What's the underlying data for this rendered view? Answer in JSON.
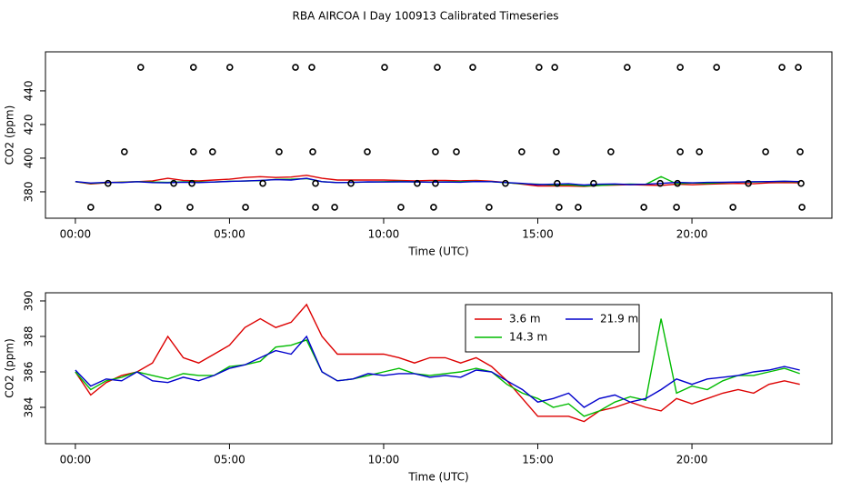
{
  "title": "RBA AIRCOA I  Day 100913  Calibrated Timeseries",
  "chart_data": [
    {
      "type": "line",
      "xlabel": "Time (UTC)",
      "ylabel": "CO2 (ppm)",
      "xlim": [
        -0.97,
        24.54
      ],
      "ylim": [
        364.3,
        463.2
      ],
      "xticks": [
        {
          "value": 0,
          "label": "00:00"
        },
        {
          "value": 5,
          "label": "05:00"
        },
        {
          "value": 10,
          "label": "10:00"
        },
        {
          "value": 15,
          "label": "15:00"
        },
        {
          "value": 20,
          "label": "20:00"
        }
      ],
      "yticks": [
        380,
        400,
        420,
        440
      ],
      "x": [
        0,
        0.5,
        1,
        1.5,
        2,
        2.5,
        3,
        3.5,
        4,
        4.5,
        5,
        5.5,
        6,
        6.5,
        7,
        7.5,
        8,
        8.5,
        9,
        9.5,
        10,
        10.5,
        11,
        11.5,
        12,
        12.5,
        13,
        13.5,
        14,
        14.5,
        15,
        15.5,
        16,
        16.5,
        17,
        17.5,
        18,
        18.5,
        19,
        19.5,
        20,
        20.5,
        21,
        21.5,
        22,
        22.5,
        23,
        23.5
      ],
      "series": [
        {
          "color": "#dd0000",
          "values": [
            386.0,
            384.7,
            385.4,
            385.8,
            386.0,
            386.5,
            388.0,
            386.8,
            386.5,
            387.0,
            387.5,
            388.5,
            389.0,
            388.5,
            388.8,
            389.8,
            388.0,
            387.0,
            387.0,
            387.0,
            387.0,
            386.8,
            386.5,
            386.8,
            386.8,
            386.5,
            386.8,
            386.3,
            385.5,
            384.5,
            383.5,
            383.5,
            383.5,
            383.2,
            383.8,
            384.0,
            384.3,
            384.0,
            383.8,
            384.5,
            384.2,
            384.5,
            384.8,
            385.0,
            384.8,
            385.3,
            385.5,
            385.3
          ]
        },
        {
          "color": "#00bb00",
          "values": [
            386.0,
            385.0,
            385.5,
            385.7,
            386.0,
            385.8,
            385.6,
            385.9,
            385.8,
            385.8,
            386.3,
            386.4,
            386.6,
            387.4,
            387.5,
            387.8,
            386.0,
            385.5,
            385.6,
            385.8,
            386.0,
            386.2,
            385.9,
            385.8,
            385.9,
            386.0,
            386.2,
            386.0,
            385.3,
            384.8,
            384.5,
            384.0,
            384.2,
            383.5,
            383.8,
            384.3,
            384.6,
            384.4,
            389.0,
            384.8,
            385.2,
            385.0,
            385.5,
            385.8,
            385.8,
            386.0,
            386.2,
            385.9
          ]
        },
        {
          "color": "#0000cc",
          "values": [
            386.1,
            385.2,
            385.6,
            385.5,
            386.0,
            385.5,
            385.4,
            385.7,
            385.5,
            385.8,
            386.2,
            386.4,
            386.8,
            387.2,
            387.0,
            388.0,
            386.0,
            385.5,
            385.6,
            385.9,
            385.8,
            385.9,
            385.9,
            385.7,
            385.8,
            385.7,
            386.1,
            386.0,
            385.5,
            385.0,
            384.3,
            384.5,
            384.8,
            384.0,
            384.5,
            384.7,
            384.3,
            384.5,
            385.0,
            385.6,
            385.3,
            385.6,
            385.7,
            385.8,
            386.0,
            386.1,
            386.3,
            386.1
          ]
        },
        {
          "type": "scatter",
          "color": "#000000",
          "x": [
            2.12,
            3.83,
            5.01,
            7.14,
            7.67,
            10.03,
            11.74,
            12.89,
            15.04,
            15.55,
            17.9,
            19.62,
            20.8,
            22.92,
            23.45,
            1.59,
            3.83,
            4.45,
            6.61,
            7.7,
            9.47,
            11.68,
            12.36,
            14.48,
            15.6,
            17.37,
            19.62,
            20.24,
            22.39,
            23.51,
            1.06,
            3.19,
            3.78,
            6.08,
            7.79,
            8.94,
            11.09,
            11.68,
            13.95,
            15.63,
            16.81,
            18.97,
            19.53,
            21.83,
            23.54,
            0.5,
            2.68,
            3.72,
            5.52,
            7.79,
            8.41,
            10.56,
            11.62,
            13.42,
            15.69,
            16.31,
            18.44,
            19.5,
            21.33,
            23.57
          ],
          "values": [
            454,
            454,
            454,
            454,
            454,
            454,
            454,
            454,
            454,
            454,
            454,
            454,
            454,
            454,
            454,
            403.8,
            403.8,
            403.8,
            403.8,
            403.8,
            403.8,
            403.8,
            403.8,
            403.8,
            403.8,
            403.8,
            403.8,
            403.8,
            403.8,
            403.8,
            385,
            385,
            385,
            385,
            385,
            385,
            385,
            385,
            385,
            385,
            385,
            385,
            385,
            385,
            385,
            370.8,
            370.8,
            370.8,
            370.8,
            370.8,
            370.8,
            370.8,
            370.8,
            370.8,
            370.8,
            370.8,
            370.8,
            370.8,
            370.8,
            370.8
          ]
        }
      ]
    },
    {
      "type": "line",
      "xlabel": "Time (UTC)",
      "ylabel": "CO2 (ppm)",
      "legend": "top",
      "xlim": [
        -0.97,
        24.54
      ],
      "ylim": [
        381.95,
        390.46
      ],
      "xticks": [
        {
          "value": 0,
          "label": "00:00"
        },
        {
          "value": 5,
          "label": "05:00"
        },
        {
          "value": 10,
          "label": "10:00"
        },
        {
          "value": 15,
          "label": "15:00"
        },
        {
          "value": 20,
          "label": "20:00"
        }
      ],
      "yticks": [
        384,
        386,
        388,
        390
      ],
      "x": [
        0,
        0.5,
        1,
        1.5,
        2,
        2.5,
        3,
        3.5,
        4,
        4.5,
        5,
        5.5,
        6,
        6.5,
        7,
        7.5,
        8,
        8.5,
        9,
        9.5,
        10,
        10.5,
        11,
        11.5,
        12,
        12.5,
        13,
        13.5,
        14,
        14.5,
        15,
        15.5,
        16,
        16.5,
        17,
        17.5,
        18,
        18.5,
        19,
        19.5,
        20,
        20.5,
        21,
        21.5,
        22,
        22.5,
        23,
        23.5
      ],
      "series": [
        {
          "name": "3.6 m",
          "color": "#dd0000",
          "values": [
            386.0,
            384.7,
            385.4,
            385.8,
            386.0,
            386.5,
            388.0,
            386.8,
            386.5,
            387.0,
            387.5,
            388.5,
            389.0,
            388.5,
            388.8,
            389.8,
            388.0,
            387.0,
            387.0,
            387.0,
            387.0,
            386.8,
            386.5,
            386.8,
            386.8,
            386.5,
            386.8,
            386.3,
            385.5,
            384.5,
            383.5,
            383.5,
            383.5,
            383.2,
            383.8,
            384.0,
            384.3,
            384.0,
            383.8,
            384.5,
            384.2,
            384.5,
            384.8,
            385.0,
            384.8,
            385.3,
            385.5,
            385.3
          ]
        },
        {
          "name": "14.3 m",
          "color": "#00bb00",
          "values": [
            386.0,
            385.0,
            385.5,
            385.7,
            386.0,
            385.8,
            385.6,
            385.9,
            385.8,
            385.8,
            386.3,
            386.4,
            386.6,
            387.4,
            387.5,
            387.8,
            386.0,
            385.5,
            385.6,
            385.8,
            386.0,
            386.2,
            385.9,
            385.8,
            385.9,
            386.0,
            386.2,
            386.0,
            385.3,
            384.8,
            384.5,
            384.0,
            384.2,
            383.5,
            383.8,
            384.3,
            384.6,
            384.4,
            389.0,
            384.8,
            385.2,
            385.0,
            385.5,
            385.8,
            385.8,
            386.0,
            386.2,
            385.9
          ]
        },
        {
          "name": "21.9 m",
          "color": "#0000cc",
          "values": [
            386.1,
            385.2,
            385.6,
            385.5,
            386.0,
            385.5,
            385.4,
            385.7,
            385.5,
            385.8,
            386.2,
            386.4,
            386.8,
            387.2,
            387.0,
            388.0,
            386.0,
            385.5,
            385.6,
            385.9,
            385.8,
            385.9,
            385.9,
            385.7,
            385.8,
            385.7,
            386.1,
            386.0,
            385.5,
            385.0,
            384.3,
            384.5,
            384.8,
            384.0,
            384.5,
            384.7,
            384.3,
            384.5,
            385.0,
            385.6,
            385.3,
            385.6,
            385.7,
            385.8,
            386.0,
            386.1,
            386.3,
            386.1
          ]
        }
      ]
    }
  ]
}
